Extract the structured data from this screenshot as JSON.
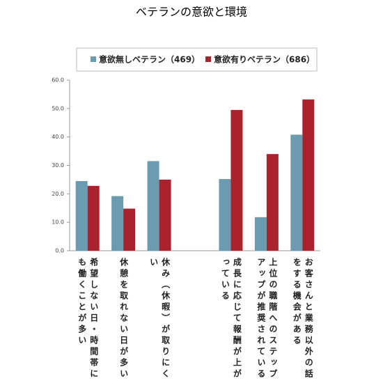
{
  "chart_data": {
    "type": "bar",
    "title": "ベテランの意欲と環境",
    "categories": [
      "希望しない日・時間帯にも働くことが多い",
      "休憩を取れない日が多い",
      "休み（休暇）が取りにくい",
      null,
      "成長に応じて報酬が上がっている",
      "上位の職階へのステップアップが推奨されている",
      "お客さんと業務以外の話をする機会がある"
    ],
    "series": [
      {
        "name": "意欲無しベテラン（469）",
        "color": "#6a9bb1",
        "values": [
          24.5,
          19.2,
          31.5,
          null,
          25.2,
          11.8,
          40.8
        ]
      },
      {
        "name": "意欲有りベテラン（686）",
        "color": "#a9222c",
        "values": [
          22.8,
          14.8,
          25.0,
          null,
          49.5,
          34.0,
          53.2
        ]
      }
    ],
    "ylim": [
      0,
      60
    ],
    "yticks": [
      {
        "value": 0,
        "label": "0.0"
      },
      {
        "value": 10,
        "label": "10.0"
      },
      {
        "value": 20,
        "label": "20.0"
      },
      {
        "value": 30,
        "label": "30.0"
      },
      {
        "value": 40,
        "label": "40.0"
      },
      {
        "value": 50,
        "label": "50.0"
      },
      {
        "value": 60,
        "label": "60.0"
      }
    ],
    "legend": "top"
  }
}
